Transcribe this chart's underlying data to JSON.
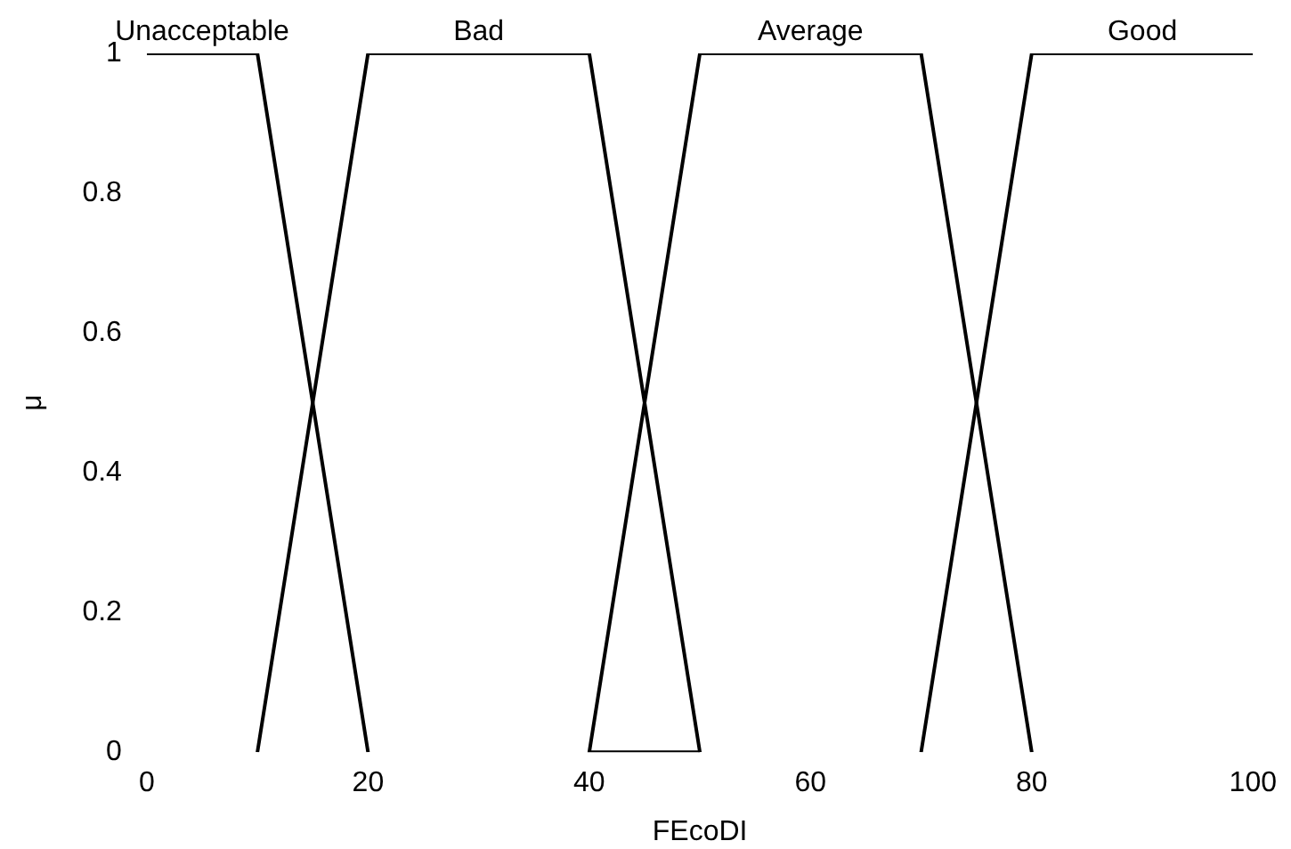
{
  "chart_data": {
    "type": "line",
    "xlabel": "FEcoDI",
    "ylabel": "μ",
    "xlim": [
      0,
      100
    ],
    "xticks": [
      0,
      20,
      40,
      60,
      80,
      100
    ],
    "ylim": [
      0,
      1
    ],
    "yticks": [
      0,
      0.2,
      0.4,
      0.6,
      0.8,
      1
    ],
    "grid": false,
    "legend": false,
    "marker": "none",
    "line_style": "solid",
    "series": [
      {
        "name": "Unacceptable",
        "color": "#000000",
        "x": [
          0,
          10,
          20
        ],
        "values": [
          1,
          1,
          0
        ]
      },
      {
        "name": "Bad",
        "color": "#000000",
        "x": [
          10,
          20,
          40,
          50
        ],
        "values": [
          0,
          1,
          1,
          0
        ]
      },
      {
        "name": "Average",
        "color": "#000000",
        "x": [
          50,
          40,
          50,
          70,
          80
        ],
        "values": [
          0,
          0,
          1,
          1,
          0
        ]
      },
      {
        "name": "Good",
        "color": "#000000",
        "x": [
          70,
          80,
          100
        ],
        "values": [
          0,
          1,
          1
        ]
      }
    ]
  }
}
